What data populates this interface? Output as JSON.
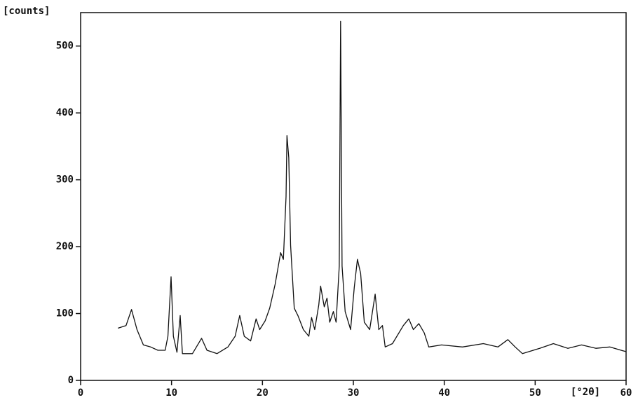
{
  "chart_data": {
    "type": "line",
    "ylabel": "[counts]",
    "xlabel": "[°2θ]",
    "xlim": [
      0,
      60
    ],
    "xticks": [
      0,
      10,
      20,
      30,
      40,
      50,
      60
    ],
    "ylim": [
      0,
      550
    ],
    "yticks": [
      0,
      100,
      200,
      300,
      400,
      500
    ],
    "series": [
      {
        "color": "#111111",
        "x": [
          4.1,
          5.0,
          5.6,
          6.2,
          6.9,
          7.7,
          8.5,
          9.3,
          9.6,
          9.95,
          10.2,
          10.6,
          10.95,
          11.2,
          12.3,
          13.3,
          13.9,
          15.0,
          16.2,
          17.0,
          17.5,
          18.0,
          18.7,
          19.3,
          19.7,
          20.3,
          20.8,
          21.4,
          22.0,
          22.3,
          22.6,
          22.7,
          22.9,
          23.1,
          23.5,
          23.9,
          24.5,
          25.1,
          25.4,
          25.75,
          26.2,
          26.4,
          26.8,
          27.1,
          27.4,
          27.8,
          28.1,
          28.45,
          28.6,
          28.76,
          29.1,
          29.7,
          30.1,
          30.45,
          30.8,
          31.2,
          31.8,
          32.4,
          32.8,
          33.2,
          33.5,
          34.3,
          35.5,
          36.1,
          36.6,
          37.2,
          37.8,
          38.3,
          39.7,
          42.0,
          44.3,
          45.9,
          47.0,
          47.8,
          48.6,
          50.5,
          52.0,
          53.6,
          55.1,
          56.7,
          58.2,
          60.0
        ],
        "values": [
          78,
          82,
          106,
          76,
          53,
          50,
          45,
          45,
          66,
          155,
          66,
          42,
          97,
          40,
          40,
          63,
          45,
          40,
          50,
          66,
          97,
          66,
          59,
          92,
          76,
          89,
          108,
          144,
          191,
          181,
          275,
          366,
          333,
          202,
          108,
          97,
          76,
          66,
          94,
          76,
          113,
          141,
          110,
          123,
          87,
          103,
          87,
          171,
          537,
          171,
          103,
          76,
          139,
          181,
          160,
          87,
          76,
          129,
          76,
          82,
          50,
          55,
          82,
          92,
          76,
          85,
          71,
          50,
          53,
          50,
          55,
          50,
          61,
          50,
          40,
          48,
          55,
          48,
          53,
          48,
          50,
          43
        ]
      }
    ]
  }
}
